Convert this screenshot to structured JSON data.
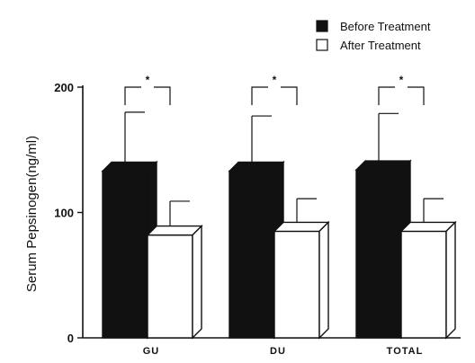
{
  "chart_data": {
    "type": "bar",
    "title": "",
    "xlabel": "",
    "ylabel": "Serum Pepsinogen(ng/ml)",
    "ylim": [
      0,
      200
    ],
    "yticks": [
      0,
      100,
      200
    ],
    "categories": [
      "GU",
      "DU",
      "TOTAL"
    ],
    "series": [
      {
        "name": "Before Treatment",
        "values": [
          133,
          133,
          134
        ],
        "errors": [
          47,
          44,
          45
        ],
        "color": "#111111"
      },
      {
        "name": "After Treatment",
        "values": [
          82,
          85,
          85
        ],
        "errors": [
          27,
          26,
          26
        ],
        "color": "#ffffff"
      }
    ],
    "significance_marker": "*",
    "legend_position": "top-right",
    "grid": false,
    "style": "3d-bars"
  }
}
